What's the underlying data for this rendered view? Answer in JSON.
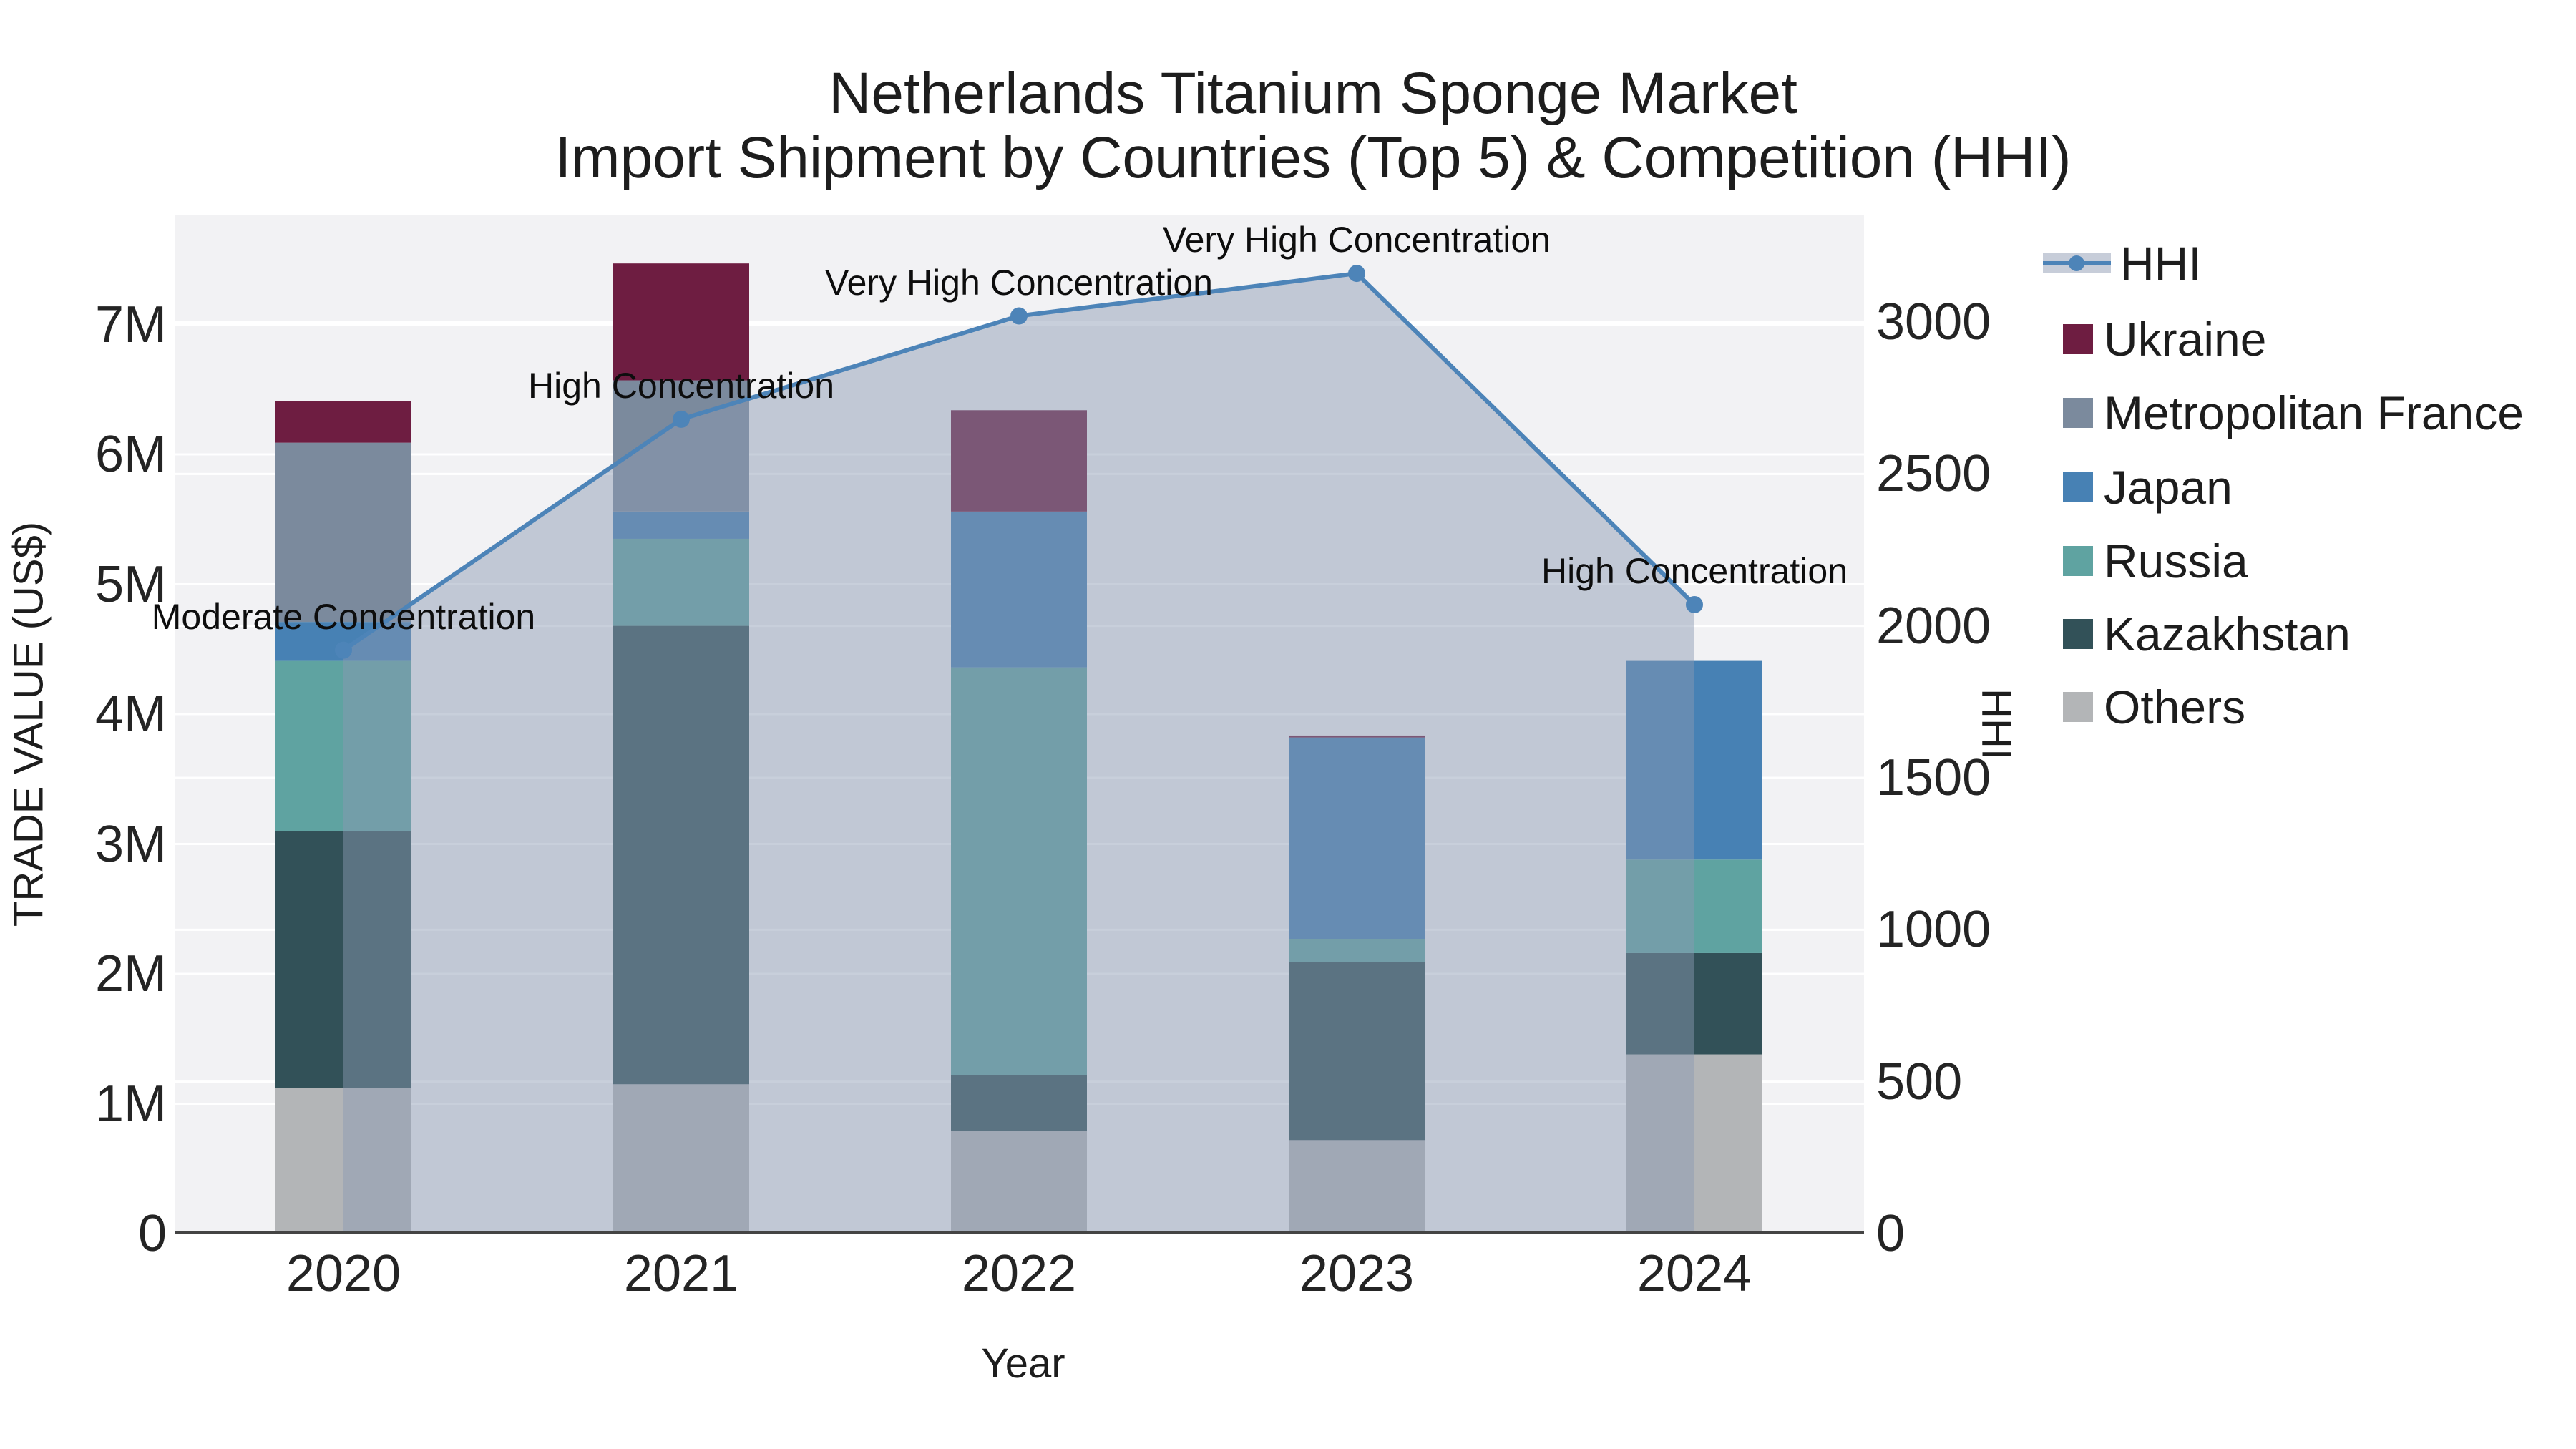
{
  "title": {
    "line1": "Netherlands Titanium Sponge Market",
    "line2": "Import Shipment by Countries (Top 5) & Competition (HHI)"
  },
  "axes": {
    "x": {
      "title": "Year",
      "ticks": [
        "2020",
        "2021",
        "2022",
        "2023",
        "2024"
      ]
    },
    "left": {
      "title": "TRADE VALUE (US$)",
      "ticks": [
        "0",
        "1M",
        "2M",
        "3M",
        "4M",
        "5M",
        "6M",
        "7M"
      ]
    },
    "right": {
      "title": "HHI",
      "ticks": [
        "0",
        "500",
        "1000",
        "1500",
        "2000",
        "2500",
        "3000"
      ]
    }
  },
  "legend": {
    "items": [
      "HHI",
      "Ukraine",
      "Metropolitan France",
      "Japan",
      "Russia",
      "Kazakhstan",
      "Others"
    ]
  },
  "colors": {
    "hhi_line": "#4d84b8",
    "hhi_area": "rgba(139,152,178,0.47)",
    "hhi_legend_band": "#c7cdd9",
    "ukraine": "#6e1d41",
    "metropolitan_france": "#7b8a9d",
    "japan": "#4781b4",
    "russia": "#5fa3a1",
    "kazakhstan": "#325158",
    "others": "#b3b5b7",
    "plot_bg": "#f2f2f4",
    "gridline": "#ffffff",
    "axis_line": "#444444",
    "text": "#1d1d1d"
  },
  "chart_data": {
    "type": "bar",
    "subtype": "stacked-bars-with-hhi-line",
    "title": "Netherlands Titanium Sponge Market — Import Shipment by Countries (Top 5) & Competition (HHI)",
    "categories": [
      "2020",
      "2021",
      "2022",
      "2023",
      "2024"
    ],
    "unit": "Trade value in millions of US$",
    "stack_order_bottom_to_top": [
      "Others",
      "Kazakhstan",
      "Russia",
      "Japan",
      "Metropolitan France",
      "Ukraine"
    ],
    "series": [
      {
        "name": "Ukraine",
        "color": "#6e1d41",
        "values": [
          0.32,
          0.9,
          0.78,
          0.015,
          0
        ]
      },
      {
        "name": "Metropolitan France",
        "color": "#7b8a9d",
        "values": [
          1.38,
          1.01,
          0,
          0,
          0
        ]
      },
      {
        "name": "Japan",
        "color": "#4781b4",
        "values": [
          0.3,
          0.21,
          1.2,
          1.55,
          1.53
        ]
      },
      {
        "name": "Russia",
        "color": "#5fa3a1",
        "values": [
          1.31,
          0.67,
          3.14,
          0.18,
          0.72
        ]
      },
      {
        "name": "Kazakhstan",
        "color": "#325158",
        "values": [
          1.98,
          3.53,
          0.43,
          1.37,
          0.78
        ]
      },
      {
        "name": "Others",
        "color": "#b3b5b7",
        "values": [
          1.12,
          1.15,
          0.79,
          0.72,
          1.38
        ]
      }
    ],
    "bar_totals_M": [
      6.41,
      7.47,
      6.34,
      3.84,
      4.41
    ],
    "line_series": {
      "name": "HHI",
      "axis": "right",
      "color": "#4d84b8",
      "values": [
        1920,
        2680,
        3020,
        3160,
        2070
      ]
    },
    "annotations": [
      {
        "category": "2020",
        "text": "Moderate Concentration"
      },
      {
        "category": "2021",
        "text": "High Concentration"
      },
      {
        "category": "2022",
        "text": "Very High Concentration"
      },
      {
        "category": "2023",
        "text": "Very High Concentration"
      },
      {
        "category": "2024",
        "text": "High Concentration"
      }
    ],
    "xlabel": "Year",
    "ylabel": "TRADE VALUE (US$)",
    "ylabel_right": "HHI",
    "ylim_left_millions": [
      0,
      7.85
    ],
    "ylim_right": [
      0,
      3355
    ],
    "grid": true,
    "legend_position": "right"
  }
}
